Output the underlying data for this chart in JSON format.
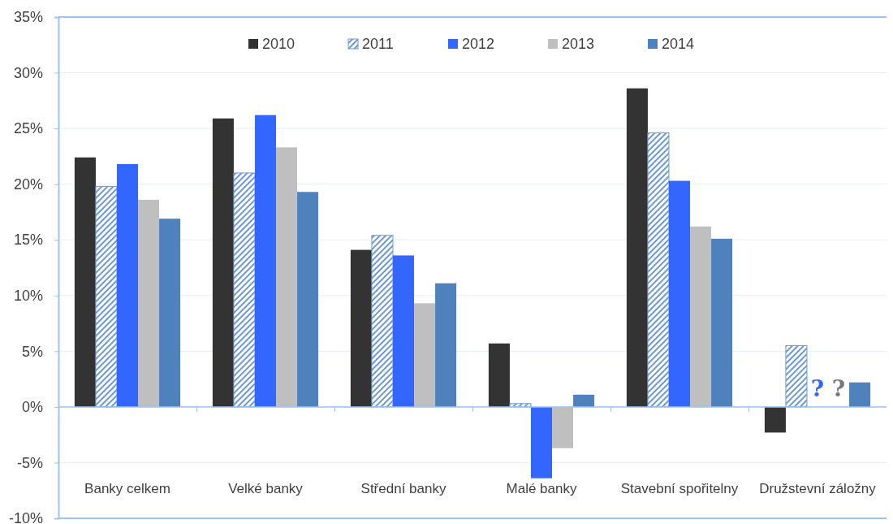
{
  "chart_data": {
    "type": "bar",
    "categories": [
      "Banky celkem",
      "Velké banky",
      "Střední banky",
      "Malé banky",
      "Stavební spořitelny",
      "Družstevní záložny"
    ],
    "series": [
      {
        "name": "2010",
        "color": "#333333",
        "values": [
          22.4,
          25.9,
          14.1,
          5.7,
          28.6,
          -2.3
        ]
      },
      {
        "name": "2011",
        "color": "#6a98d8",
        "values": [
          19.8,
          21.0,
          15.4,
          0.3,
          24.6,
          5.5
        ]
      },
      {
        "name": "2012",
        "color": "#3366ff",
        "values": [
          21.8,
          26.2,
          13.6,
          -6.4,
          20.3,
          null
        ]
      },
      {
        "name": "2013",
        "color": "#bfbfbf",
        "values": [
          18.6,
          23.3,
          9.3,
          -3.7,
          16.2,
          null
        ]
      },
      {
        "name": "2014",
        "color": "#4f81bd",
        "values": [
          16.9,
          19.3,
          11.1,
          1.1,
          15.1,
          2.2
        ]
      }
    ],
    "ylim": [
      -10,
      35
    ],
    "yticks": [
      {
        "value": -10,
        "label": "-10%"
      },
      {
        "value": -5,
        "label": "-5%"
      },
      {
        "value": 0,
        "label": "0%"
      },
      {
        "value": 5,
        "label": "5%"
      },
      {
        "value": 10,
        "label": "10%"
      },
      {
        "value": 15,
        "label": "15%"
      },
      {
        "value": 20,
        "label": "20%"
      },
      {
        "value": 25,
        "label": "25%"
      },
      {
        "value": 30,
        "label": "30%"
      },
      {
        "value": 35,
        "label": "35%"
      }
    ],
    "ref_lines": [
      {
        "axis": "y",
        "value": 0,
        "color": "#9cc3f0"
      }
    ],
    "grid": "y",
    "legend": "top",
    "annotations": [
      "?",
      "?"
    ]
  }
}
